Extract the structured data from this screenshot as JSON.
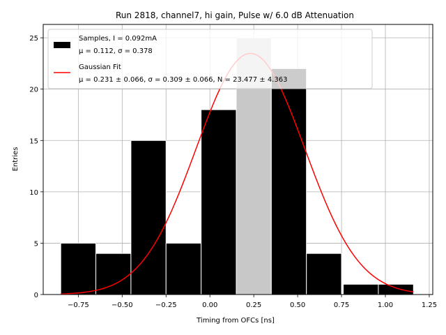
{
  "chart_data": {
    "type": "histogram",
    "title": "Run 2818, channel7, hi gain, Pulse w/ 6.0 dB Attenuation",
    "xlabel": "Timing from OFCs [ns]",
    "ylabel": "Entries",
    "xlim": [
      -0.95,
      1.27
    ],
    "ylim": [
      0,
      26.3
    ],
    "xticks": [
      -0.75,
      -0.5,
      -0.25,
      0.0,
      0.25,
      0.5,
      0.75,
      1.0,
      1.25
    ],
    "xtick_labels": [
      "−0.75",
      "−0.50",
      "−0.25",
      "0.00",
      "0.25",
      "0.50",
      "0.75",
      "1.00",
      "1.25"
    ],
    "yticks": [
      0,
      5,
      10,
      15,
      20,
      25
    ],
    "ytick_labels": [
      "0",
      "5",
      "10",
      "15",
      "20",
      "25"
    ],
    "grid": true,
    "legend_position": "top-left",
    "bins": [
      {
        "x0": -0.85,
        "x1": -0.65,
        "count": 5
      },
      {
        "x0": -0.65,
        "x1": -0.45,
        "count": 4
      },
      {
        "x0": -0.45,
        "x1": -0.25,
        "count": 15
      },
      {
        "x0": -0.25,
        "x1": -0.05,
        "count": 5
      },
      {
        "x0": -0.05,
        "x1": 0.15,
        "count": 18
      },
      {
        "x0": 0.15,
        "x1": 0.35,
        "count": 25
      },
      {
        "x0": 0.35,
        "x1": 0.55,
        "count": 22
      },
      {
        "x0": 0.55,
        "x1": 0.75,
        "count": 4
      },
      {
        "x0": 0.76,
        "x1": 0.96,
        "count": 1
      },
      {
        "x0": 0.96,
        "x1": 1.16,
        "count": 1
      }
    ],
    "fit": {
      "mu": 0.231,
      "sigma": 0.309,
      "N": 23.477,
      "x_range": [
        -0.85,
        1.16
      ]
    },
    "series": [
      {
        "name": "Samples, I = 0.092mA",
        "stats": "μ = 0.112, σ = 0.378",
        "color": "#000000"
      },
      {
        "name": "Gaussian Fit",
        "stats": "μ = 0.231 ± 0.066, σ = 0.309 ± 0.066, N = 23.477 ± 4.363",
        "color": "#ff0000"
      }
    ]
  }
}
